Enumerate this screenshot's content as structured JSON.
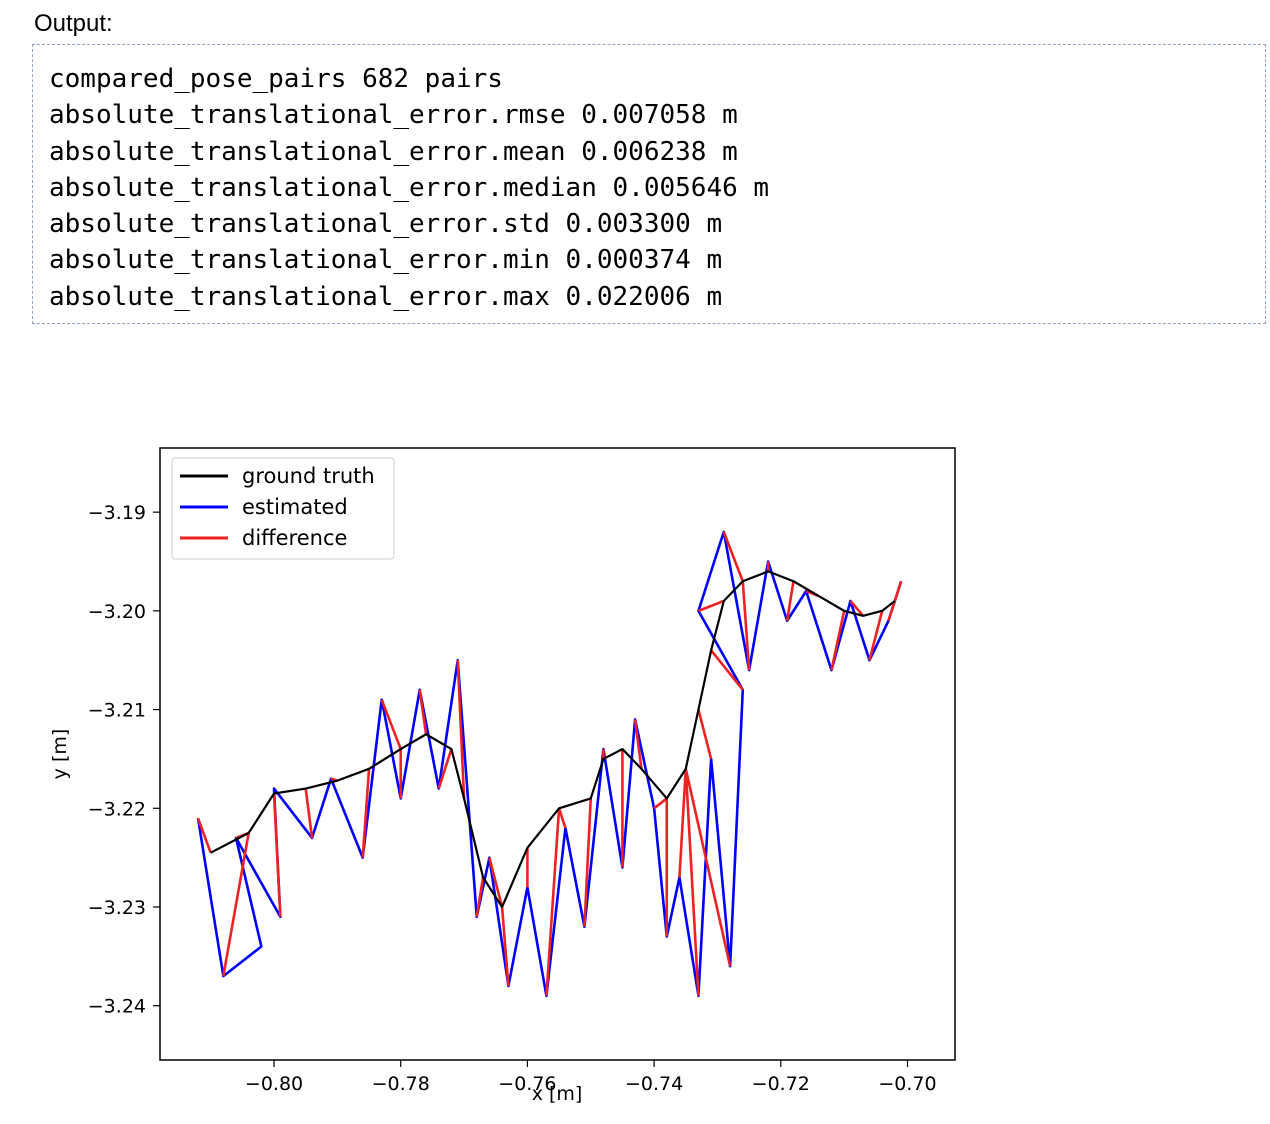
{
  "output": {
    "label": "Output:",
    "lines": [
      "compared_pose_pairs 682 pairs",
      "absolute_translational_error.rmse 0.007058 m",
      "absolute_translational_error.mean 0.006238 m",
      "absolute_translational_error.median 0.005646 m",
      "absolute_translational_error.std 0.003300 m",
      "absolute_translational_error.min 0.000374 m",
      "absolute_translational_error.max 0.022006 m"
    ]
  },
  "chart_data": {
    "type": "line",
    "title": "",
    "xlabel": "x [m]",
    "ylabel": "y [m]",
    "xlim": [
      -0.818,
      -0.6925
    ],
    "ylim": [
      -3.2455,
      -3.1835
    ],
    "xticks": [
      -0.8,
      -0.78,
      -0.76,
      -0.74,
      -0.72,
      -0.7
    ],
    "xtick_labels": [
      "−0.80",
      "−0.78",
      "−0.76",
      "−0.74",
      "−0.72",
      "−0.70"
    ],
    "yticks": [
      -3.19,
      -3.2,
      -3.21,
      -3.22,
      -3.23,
      -3.24
    ],
    "ytick_labels": [
      "−3.19",
      "−3.20",
      "−3.21",
      "−3.22",
      "−3.23",
      "−3.24"
    ],
    "grid": false,
    "legend_position": "top-left",
    "series": [
      {
        "name": "ground truth",
        "color": "#000000",
        "points": [
          [
            -0.81,
            -3.2245
          ],
          [
            -0.804,
            -3.2225
          ],
          [
            -0.8,
            -3.2185
          ],
          [
            -0.795,
            -3.218
          ],
          [
            -0.79,
            -3.2172
          ],
          [
            -0.785,
            -3.216
          ],
          [
            -0.78,
            -3.214
          ],
          [
            -0.776,
            -3.2125
          ],
          [
            -0.772,
            -3.214
          ],
          [
            -0.77,
            -3.219
          ],
          [
            -0.767,
            -3.227
          ],
          [
            -0.764,
            -3.23
          ],
          [
            -0.76,
            -3.224
          ],
          [
            -0.755,
            -3.22
          ],
          [
            -0.75,
            -3.219
          ],
          [
            -0.748,
            -3.215
          ],
          [
            -0.745,
            -3.214
          ],
          [
            -0.742,
            -3.216
          ],
          [
            -0.738,
            -3.219
          ],
          [
            -0.735,
            -3.216
          ],
          [
            -0.733,
            -3.21
          ],
          [
            -0.731,
            -3.204
          ],
          [
            -0.729,
            -3.199
          ],
          [
            -0.726,
            -3.197
          ],
          [
            -0.722,
            -3.196
          ],
          [
            -0.718,
            -3.197
          ],
          [
            -0.714,
            -3.1985
          ],
          [
            -0.71,
            -3.2
          ],
          [
            -0.707,
            -3.2005
          ],
          [
            -0.704,
            -3.2
          ],
          [
            -0.702,
            -3.199
          ]
        ]
      },
      {
        "name": "estimated",
        "color": "#0000ff",
        "points": [
          [
            -0.812,
            -3.221
          ],
          [
            -0.808,
            -3.237
          ],
          [
            -0.802,
            -3.234
          ],
          [
            -0.806,
            -3.223
          ],
          [
            -0.799,
            -3.231
          ],
          [
            -0.8,
            -3.218
          ],
          [
            -0.794,
            -3.223
          ],
          [
            -0.791,
            -3.217
          ],
          [
            -0.786,
            -3.225
          ],
          [
            -0.783,
            -3.209
          ],
          [
            -0.78,
            -3.219
          ],
          [
            -0.777,
            -3.208
          ],
          [
            -0.774,
            -3.218
          ],
          [
            -0.771,
            -3.205
          ],
          [
            -0.768,
            -3.231
          ],
          [
            -0.766,
            -3.225
          ],
          [
            -0.763,
            -3.238
          ],
          [
            -0.76,
            -3.228
          ],
          [
            -0.757,
            -3.239
          ],
          [
            -0.754,
            -3.222
          ],
          [
            -0.751,
            -3.232
          ],
          [
            -0.748,
            -3.214
          ],
          [
            -0.745,
            -3.226
          ],
          [
            -0.743,
            -3.211
          ],
          [
            -0.74,
            -3.22
          ],
          [
            -0.738,
            -3.233
          ],
          [
            -0.736,
            -3.227
          ],
          [
            -0.733,
            -3.239
          ],
          [
            -0.731,
            -3.215
          ],
          [
            -0.728,
            -3.236
          ],
          [
            -0.726,
            -3.208
          ],
          [
            -0.733,
            -3.2
          ],
          [
            -0.729,
            -3.192
          ],
          [
            -0.725,
            -3.206
          ],
          [
            -0.722,
            -3.195
          ],
          [
            -0.719,
            -3.201
          ],
          [
            -0.716,
            -3.198
          ],
          [
            -0.712,
            -3.206
          ],
          [
            -0.709,
            -3.199
          ],
          [
            -0.706,
            -3.205
          ],
          [
            -0.703,
            -3.201
          ],
          [
            -0.701,
            -3.197
          ]
        ]
      },
      {
        "name": "difference",
        "color": "#ee2222",
        "segments": [
          [
            -0.812,
            -3.221,
            -0.81,
            -3.2245
          ],
          [
            -0.808,
            -3.237,
            -0.804,
            -3.2225
          ],
          [
            -0.806,
            -3.223,
            -0.804,
            -3.2225
          ],
          [
            -0.799,
            -3.231,
            -0.8,
            -3.2185
          ],
          [
            -0.794,
            -3.223,
            -0.795,
            -3.218
          ],
          [
            -0.791,
            -3.217,
            -0.79,
            -3.2172
          ],
          [
            -0.786,
            -3.225,
            -0.785,
            -3.216
          ],
          [
            -0.783,
            -3.209,
            -0.78,
            -3.214
          ],
          [
            -0.78,
            -3.219,
            -0.78,
            -3.214
          ],
          [
            -0.777,
            -3.208,
            -0.776,
            -3.2125
          ],
          [
            -0.774,
            -3.218,
            -0.772,
            -3.214
          ],
          [
            -0.771,
            -3.205,
            -0.77,
            -3.219
          ],
          [
            -0.768,
            -3.231,
            -0.767,
            -3.227
          ],
          [
            -0.766,
            -3.225,
            -0.764,
            -3.23
          ],
          [
            -0.763,
            -3.238,
            -0.764,
            -3.23
          ],
          [
            -0.76,
            -3.228,
            -0.76,
            -3.224
          ],
          [
            -0.757,
            -3.239,
            -0.755,
            -3.22
          ],
          [
            -0.754,
            -3.222,
            -0.755,
            -3.22
          ],
          [
            -0.751,
            -3.232,
            -0.75,
            -3.219
          ],
          [
            -0.748,
            -3.214,
            -0.748,
            -3.215
          ],
          [
            -0.745,
            -3.226,
            -0.745,
            -3.214
          ],
          [
            -0.743,
            -3.211,
            -0.742,
            -3.216
          ],
          [
            -0.74,
            -3.22,
            -0.738,
            -3.219
          ],
          [
            -0.738,
            -3.233,
            -0.738,
            -3.219
          ],
          [
            -0.736,
            -3.227,
            -0.735,
            -3.216
          ],
          [
            -0.733,
            -3.239,
            -0.735,
            -3.216
          ],
          [
            -0.731,
            -3.215,
            -0.733,
            -3.21
          ],
          [
            -0.728,
            -3.236,
            -0.735,
            -3.216
          ],
          [
            -0.726,
            -3.208,
            -0.731,
            -3.204
          ],
          [
            -0.733,
            -3.2,
            -0.729,
            -3.199
          ],
          [
            -0.729,
            -3.192,
            -0.726,
            -3.197
          ],
          [
            -0.725,
            -3.206,
            -0.726,
            -3.197
          ],
          [
            -0.722,
            -3.195,
            -0.722,
            -3.196
          ],
          [
            -0.719,
            -3.201,
            -0.718,
            -3.197
          ],
          [
            -0.716,
            -3.198,
            -0.714,
            -3.1985
          ],
          [
            -0.712,
            -3.206,
            -0.71,
            -3.2
          ],
          [
            -0.709,
            -3.199,
            -0.707,
            -3.2005
          ],
          [
            -0.706,
            -3.205,
            -0.704,
            -3.2
          ],
          [
            -0.703,
            -3.201,
            -0.702,
            -3.199
          ],
          [
            -0.701,
            -3.197,
            -0.702,
            -3.199
          ]
        ]
      }
    ]
  }
}
